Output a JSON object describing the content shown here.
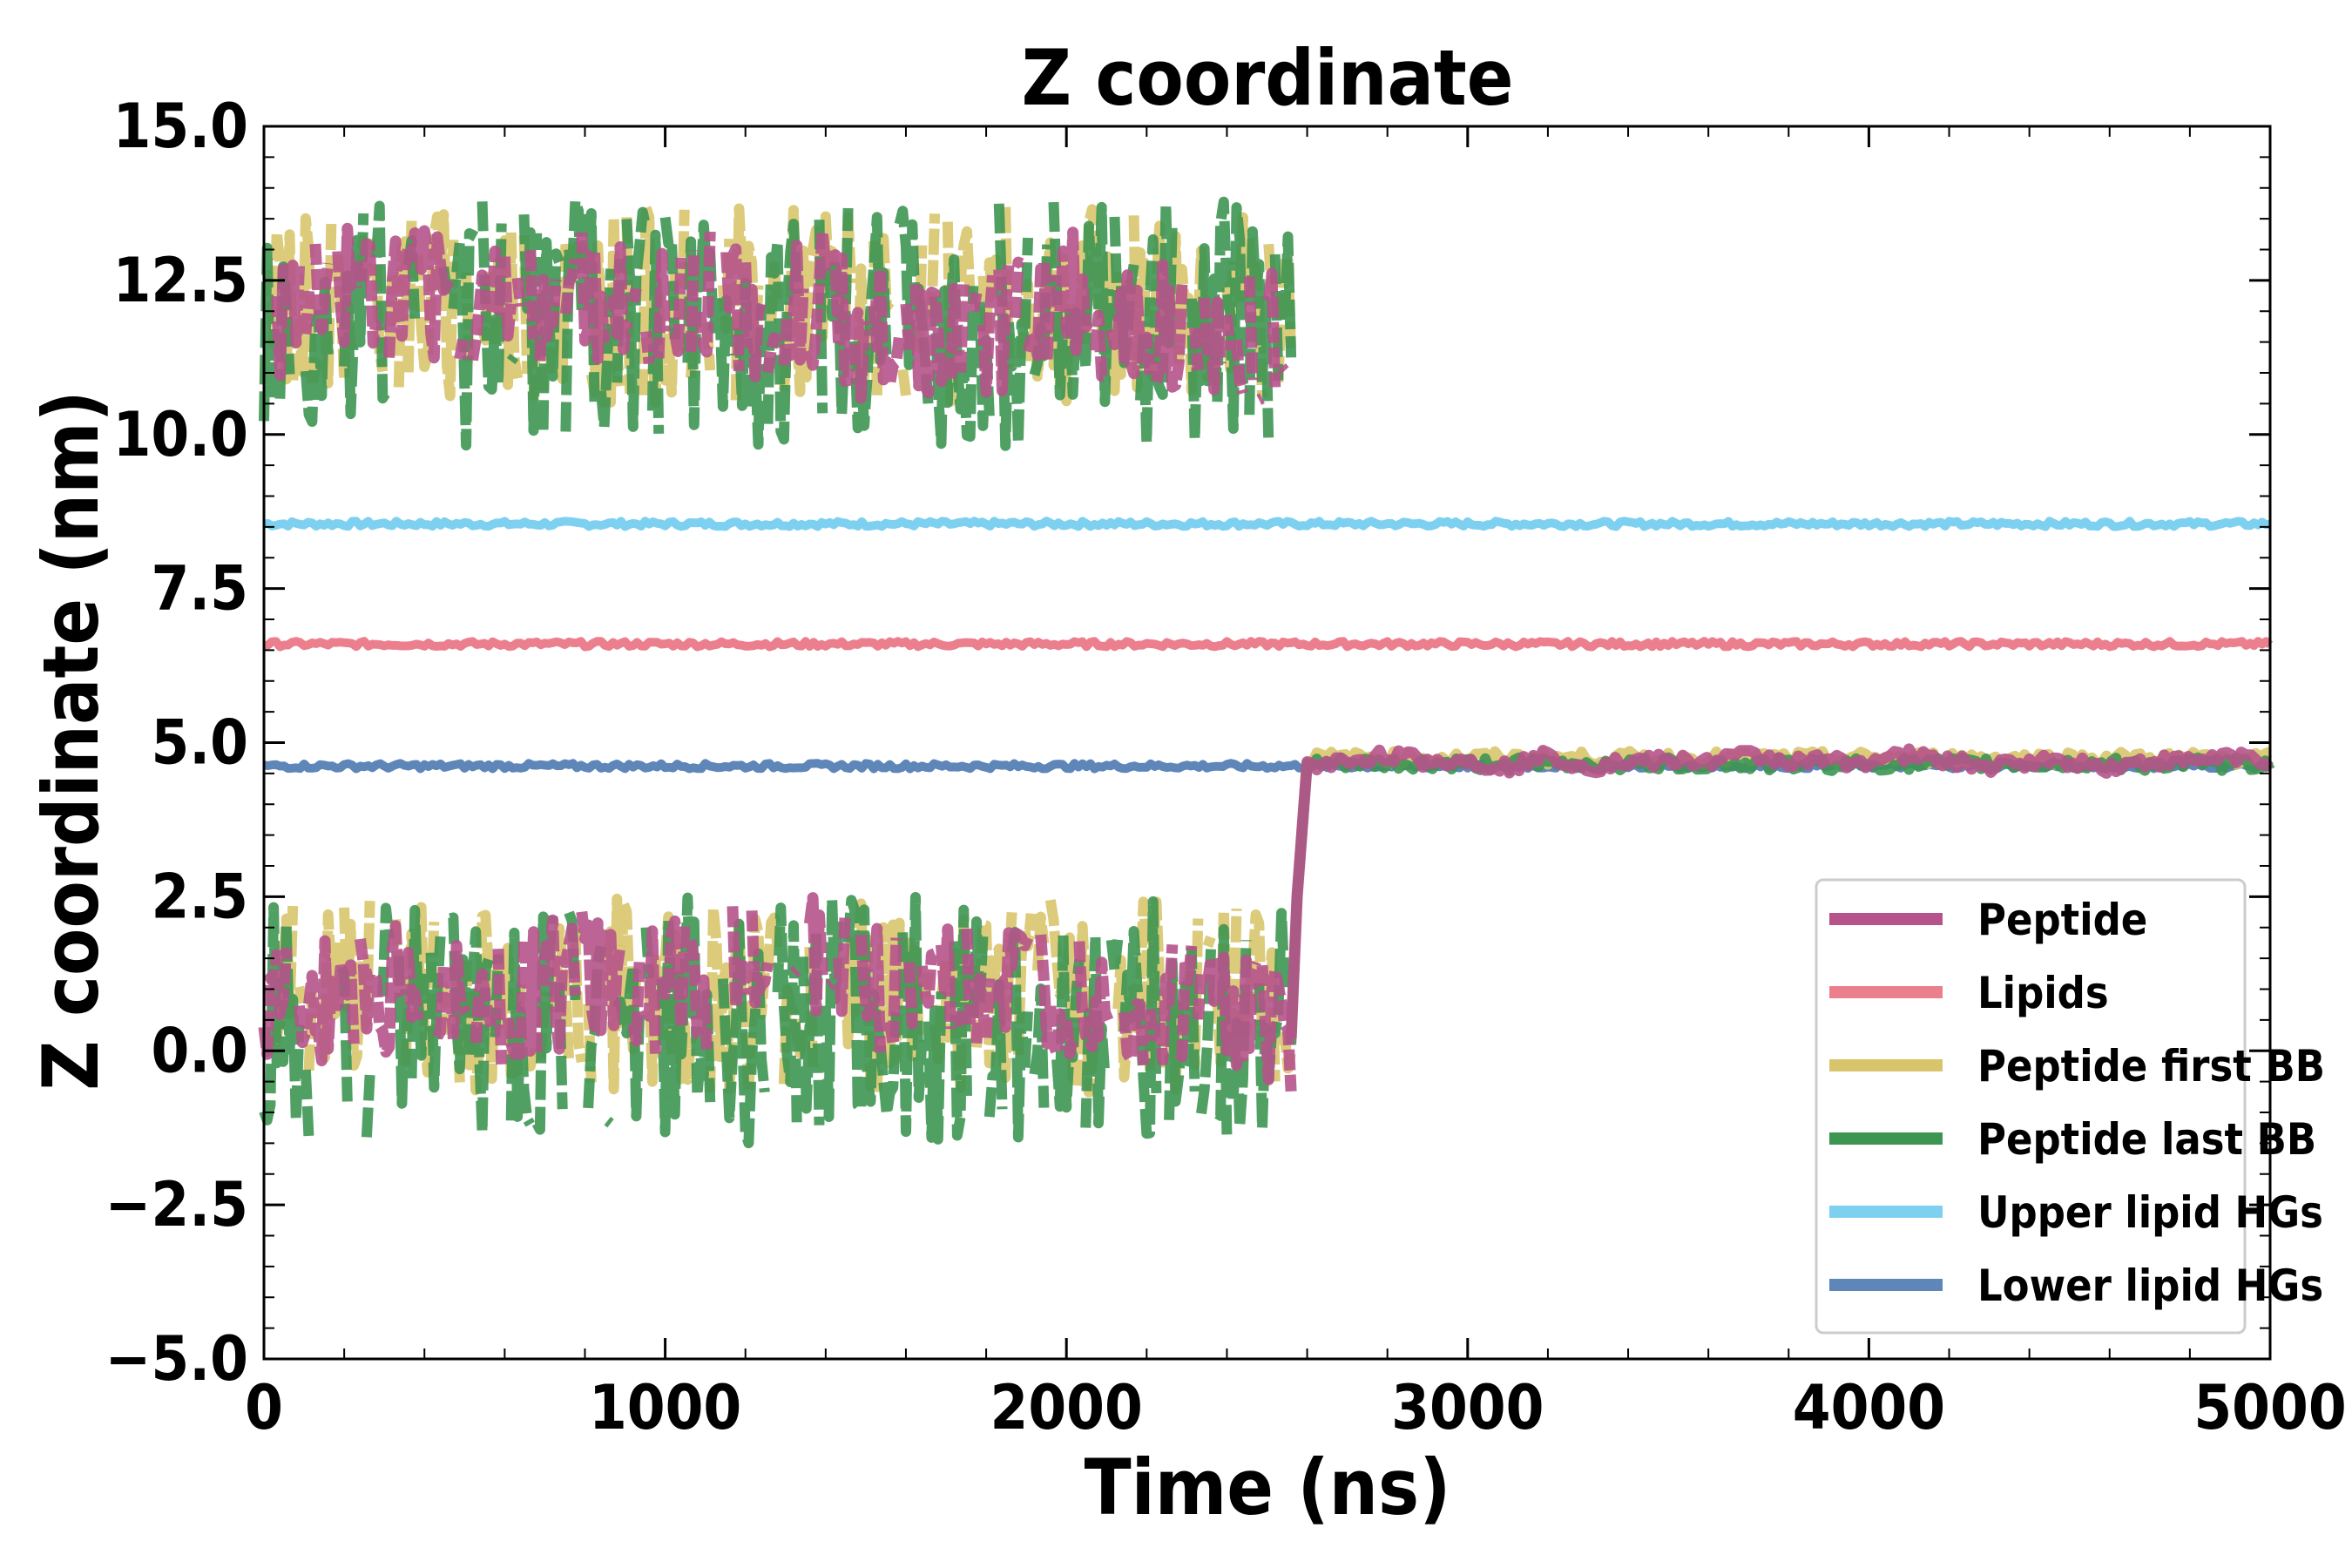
{
  "chart_data": {
    "type": "line",
    "title": "Z coordinate",
    "xlabel": "Time (ns)",
    "ylabel": "Z coordinate (nm)",
    "xlim": [
      0,
      5000
    ],
    "ylim": [
      -5.0,
      15.0
    ],
    "xticks": [
      0,
      1000,
      2000,
      3000,
      4000,
      5000
    ],
    "xtick_labels": [
      "0",
      "1000",
      "2000",
      "3000",
      "4000",
      "5000"
    ],
    "yticks": [
      -5.0,
      -2.5,
      0.0,
      2.5,
      5.0,
      7.5,
      10.0,
      12.5,
      15.0
    ],
    "ytick_labels": [
      "−5.0",
      "−2.5",
      "0.0",
      "2.5",
      "5.0",
      "7.5",
      "10.0",
      "12.5",
      "15.0"
    ],
    "grid": false,
    "legend_position": "bottom-right",
    "series": [
      {
        "name": "Peptide",
        "color": "#b5538a",
        "style": "fragmented",
        "x": [
          0,
          50,
          100,
          200,
          300,
          400,
          500,
          600,
          700,
          800,
          900,
          1000,
          1100,
          1200,
          1400,
          1500,
          1600,
          1700,
          1800,
          1900,
          2000,
          2100,
          2200,
          2300,
          2400,
          2500,
          2560,
          2575,
          2600,
          2700,
          2800,
          2900,
          3000,
          3100,
          3200,
          3300,
          3400,
          3500,
          3600,
          3700,
          3800,
          3900,
          4000,
          4100,
          4200,
          4300,
          4400,
          4500,
          4600,
          4700,
          4800,
          4900,
          5000
        ],
        "y_upper": [
          10.5,
          11.8,
          12.2,
          12.4,
          12.0,
          12.3,
          12.1,
          12.4,
          12.2,
          12.3,
          11.9,
          12.1,
          12.3,
          12.0,
          12.2,
          11.6,
          11.8,
          11.5,
          11.6,
          12.1,
          12.3,
          11.7,
          12.0,
          11.5,
          11.4,
          11.6,
          11.2,
          null,
          null,
          null,
          null,
          null,
          null,
          null,
          null,
          null,
          null,
          null,
          null,
          null,
          null,
          null,
          null,
          null,
          null,
          null,
          null,
          null,
          null,
          null,
          null,
          null,
          null
        ],
        "y_lower": [
          0.5,
          0.7,
          0.8,
          1.0,
          0.9,
          1.1,
          0.6,
          0.8,
          1.0,
          1.2,
          0.9,
          1.0,
          1.1,
          1.4,
          1.5,
          1.0,
          0.8,
          1.0,
          0.9,
          1.0,
          0.9,
          1.1,
          0.6,
          0.8,
          0.7,
          0.5,
          0.3,
          4.5,
          4.6,
          4.7,
          4.8,
          4.7,
          4.7,
          4.6,
          4.8,
          4.6,
          4.7,
          4.7,
          4.7,
          4.8,
          4.7,
          4.7,
          4.7,
          4.8,
          4.7,
          4.6,
          4.7,
          4.7,
          4.6,
          4.7,
          4.7,
          4.8,
          4.7
        ]
      },
      {
        "name": "Lipids",
        "color": "#ec7f8e",
        "style": "flat",
        "y": 6.6
      },
      {
        "name": "Peptide first BB",
        "color": "#d8c56b",
        "style": "fragmented",
        "y_upper_mean": 12.0,
        "y_lower_mean": 0.8,
        "after_transition": 4.75
      },
      {
        "name": "Peptide last BB",
        "color": "#3d9552",
        "style": "fragmented",
        "y_upper_mean": 11.9,
        "y_lower_mean": 0.6,
        "after_transition": 4.65
      },
      {
        "name": "Upper lipid HGs",
        "color": "#7ed0f0",
        "style": "flat",
        "y": 8.55
      },
      {
        "name": "Lower lipid HGs",
        "color": "#5e86b8",
        "style": "flat",
        "y": 4.62
      }
    ]
  }
}
